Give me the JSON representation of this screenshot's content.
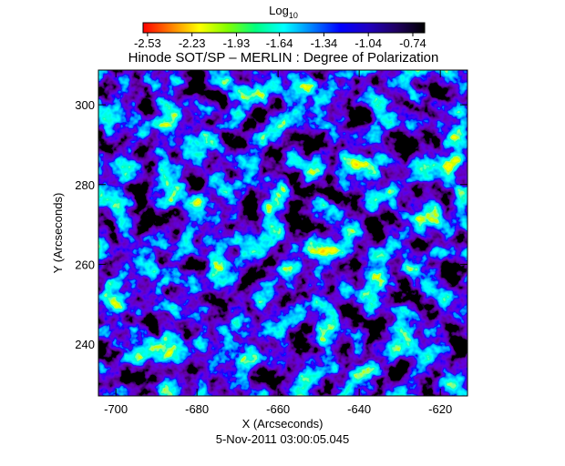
{
  "chart_data": {
    "type": "heatmap",
    "title": "Hinode SOT/SP – MERLIN : Degree of Polarization",
    "x_label": "X (Arcseconds)",
    "y_label": "Y (Arcseconds)",
    "footer": "5-Nov-2011 03:00:05.045",
    "colorbar_label": "Log",
    "colorbar_label_sub": "10",
    "colorbar_lim": [
      -2.56,
      -0.66
    ],
    "colorbar_ticks": [
      -2.53,
      -2.23,
      -1.93,
      -1.64,
      -1.34,
      -1.04,
      -0.74
    ],
    "colormap": [
      "#ff0000",
      "#ff8000",
      "#ffff00",
      "#80ff00",
      "#00ff80",
      "#00ffff",
      "#0080ff",
      "#0000ff",
      "#2000c0",
      "#200060",
      "#000000"
    ],
    "xlim": [
      -704.3,
      -613.3
    ],
    "xticks": [
      -700,
      -680,
      -660,
      -640,
      -620
    ],
    "ylim": [
      227,
      308.7
    ],
    "yticks": [
      240,
      260,
      280,
      300
    ]
  }
}
